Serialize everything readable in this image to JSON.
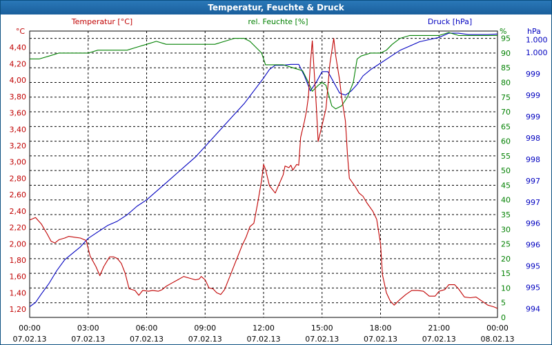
{
  "window": {
    "title": "Temperatur, Feuchte & Druck"
  },
  "colors": {
    "temperature": "#c00000",
    "humidity": "#008000",
    "pressure": "#0000c0",
    "title_bar": "#1f6aa8",
    "grid": "#000000"
  },
  "chart_data": {
    "type": "line",
    "title": "Temperatur, Feuchte & Druck",
    "grid": true,
    "x_ticks": [
      {
        "time": "00:00",
        "date": "07.02.13"
      },
      {
        "time": "03:00",
        "date": "07.02.13"
      },
      {
        "time": "06:00",
        "date": "07.02.13"
      },
      {
        "time": "09:00",
        "date": "07.02.13"
      },
      {
        "time": "12:00",
        "date": "07.02.13"
      },
      {
        "time": "15:00",
        "date": "07.02.13"
      },
      {
        "time": "18:00",
        "date": "07.02.13"
      },
      {
        "time": "21:00",
        "date": "07.02.13"
      },
      {
        "time": "00:00",
        "date": "08.02.13"
      }
    ],
    "xlim_hours": [
      0,
      24
    ],
    "axes": {
      "temperature": {
        "label": "Temperatur [°C]",
        "unit": "°C",
        "ylim": [
          1.1,
          4.6
        ],
        "ticks": [
          "1,20",
          "1,40",
          "1,60",
          "1,80",
          "2,00",
          "2,20",
          "2,40",
          "2,60",
          "2,80",
          "3,00",
          "3,20",
          "3,40",
          "3,60",
          "3,80",
          "4,00",
          "4,20",
          "4,40"
        ],
        "tick_values": [
          1.2,
          1.4,
          1.6,
          1.8,
          2.0,
          2.2,
          2.4,
          2.6,
          2.8,
          3.0,
          3.2,
          3.4,
          3.6,
          3.8,
          4.0,
          4.2,
          4.4
        ]
      },
      "humidity": {
        "label": "rel. Feuchte [%]",
        "unit": "%",
        "ylim": [
          0,
          97.5
        ],
        "ticks": [
          "0",
          "5",
          "10",
          "15",
          "20",
          "25",
          "30",
          "35",
          "40",
          "45",
          "50",
          "55",
          "60",
          "65",
          "70",
          "75",
          "80",
          "85",
          "90",
          "95"
        ],
        "tick_values": [
          0,
          5,
          10,
          15,
          20,
          25,
          30,
          35,
          40,
          45,
          50,
          55,
          60,
          65,
          70,
          75,
          80,
          85,
          90,
          95
        ]
      },
      "pressure": {
        "label": "Druck [hPa]",
        "unit": "hPa",
        "ylim": [
          993.8,
          1000.5
        ],
        "ticks": [
          "994",
          "995",
          "995",
          "996",
          "996",
          "997",
          "997",
          "998",
          "998",
          "999",
          "999",
          "999",
          "1.000",
          "1.000"
        ],
        "tick_values": [
          994,
          994.5,
          995,
          995.5,
          996,
          996.5,
          997,
          997.5,
          998,
          998.5,
          999,
          999.5,
          1000,
          1000.3
        ]
      }
    },
    "series": [
      {
        "name": "Temperatur [°C]",
        "axis": "temperature",
        "points": [
          [
            0,
            2.29
          ],
          [
            0.3,
            2.32
          ],
          [
            0.6,
            2.24
          ],
          [
            0.9,
            2.12
          ],
          [
            1.1,
            2.03
          ],
          [
            1.3,
            2.01
          ],
          [
            1.5,
            2.05
          ],
          [
            1.8,
            2.07
          ],
          [
            2.0,
            2.09
          ],
          [
            2.3,
            2.08
          ],
          [
            2.6,
            2.07
          ],
          [
            2.9,
            2.04
          ],
          [
            3.1,
            1.85
          ],
          [
            3.4,
            1.72
          ],
          [
            3.6,
            1.61
          ],
          [
            3.8,
            1.72
          ],
          [
            4.1,
            1.84
          ],
          [
            4.3,
            1.84
          ],
          [
            4.5,
            1.82
          ],
          [
            4.7,
            1.76
          ],
          [
            4.9,
            1.64
          ],
          [
            5.1,
            1.45
          ],
          [
            5.4,
            1.43
          ],
          [
            5.6,
            1.37
          ],
          [
            5.8,
            1.43
          ],
          [
            6.1,
            1.42
          ],
          [
            6.3,
            1.43
          ],
          [
            6.6,
            1.42
          ],
          [
            6.8,
            1.44
          ],
          [
            7.0,
            1.48
          ],
          [
            7.3,
            1.52
          ],
          [
            7.6,
            1.56
          ],
          [
            7.9,
            1.6
          ],
          [
            8.2,
            1.58
          ],
          [
            8.5,
            1.56
          ],
          [
            8.7,
            1.57
          ],
          [
            8.8,
            1.6
          ],
          [
            9.0,
            1.56
          ],
          [
            9.2,
            1.46
          ],
          [
            9.4,
            1.45
          ],
          [
            9.6,
            1.4
          ],
          [
            9.8,
            1.38
          ],
          [
            10.0,
            1.44
          ],
          [
            10.3,
            1.62
          ],
          [
            10.6,
            1.8
          ],
          [
            10.9,
            1.98
          ],
          [
            11.1,
            2.08
          ],
          [
            11.3,
            2.21
          ],
          [
            11.5,
            2.25
          ],
          [
            11.7,
            2.5
          ],
          [
            11.9,
            2.78
          ],
          [
            12.0,
            2.97
          ],
          [
            12.1,
            2.91
          ],
          [
            12.3,
            2.71
          ],
          [
            12.5,
            2.65
          ],
          [
            12.6,
            2.62
          ],
          [
            12.8,
            2.73
          ],
          [
            13.0,
            2.84
          ],
          [
            13.1,
            2.95
          ],
          [
            13.3,
            2.93
          ],
          [
            13.4,
            2.96
          ],
          [
            13.5,
            2.9
          ],
          [
            13.7,
            2.97
          ],
          [
            13.8,
            2.96
          ],
          [
            13.9,
            3.3
          ],
          [
            14.1,
            3.5
          ],
          [
            14.2,
            3.62
          ],
          [
            14.3,
            3.8
          ],
          [
            14.4,
            4.2
          ],
          [
            14.5,
            4.48
          ],
          [
            14.7,
            3.7
          ],
          [
            14.8,
            3.25
          ],
          [
            15.0,
            3.45
          ],
          [
            15.2,
            3.65
          ],
          [
            15.4,
            4.2
          ],
          [
            15.6,
            4.51
          ],
          [
            15.7,
            4.3
          ],
          [
            15.9,
            4.0
          ],
          [
            16.0,
            3.8
          ],
          [
            16.2,
            3.5
          ],
          [
            16.3,
            3.1
          ],
          [
            16.4,
            2.8
          ],
          [
            16.7,
            2.7
          ],
          [
            16.9,
            2.62
          ],
          [
            17.1,
            2.58
          ],
          [
            17.3,
            2.5
          ],
          [
            17.6,
            2.4
          ],
          [
            17.8,
            2.3
          ],
          [
            18.0,
            2.0
          ],
          [
            18.1,
            1.62
          ],
          [
            18.3,
            1.4
          ],
          [
            18.5,
            1.3
          ],
          [
            18.7,
            1.25
          ],
          [
            19.0,
            1.32
          ],
          [
            19.3,
            1.38
          ],
          [
            19.6,
            1.43
          ],
          [
            19.9,
            1.43
          ],
          [
            20.2,
            1.42
          ],
          [
            20.5,
            1.36
          ],
          [
            20.8,
            1.36
          ],
          [
            21.0,
            1.42
          ],
          [
            21.3,
            1.44
          ],
          [
            21.5,
            1.5
          ],
          [
            21.8,
            1.5
          ],
          [
            22.0,
            1.45
          ],
          [
            22.3,
            1.35
          ],
          [
            22.6,
            1.34
          ],
          [
            22.9,
            1.35
          ],
          [
            23.2,
            1.3
          ],
          [
            23.5,
            1.25
          ],
          [
            23.8,
            1.23
          ],
          [
            24.0,
            1.21
          ]
        ]
      },
      {
        "name": "rel. Feuchte [%]",
        "axis": "humidity",
        "points": [
          [
            0,
            88
          ],
          [
            0.5,
            88
          ],
          [
            1.0,
            89
          ],
          [
            1.5,
            90
          ],
          [
            2.0,
            90
          ],
          [
            2.5,
            90
          ],
          [
            3.0,
            90
          ],
          [
            3.5,
            91
          ],
          [
            4.0,
            91
          ],
          [
            4.5,
            91
          ],
          [
            5.0,
            91
          ],
          [
            5.5,
            92
          ],
          [
            6.0,
            93
          ],
          [
            6.5,
            94
          ],
          [
            7.0,
            93
          ],
          [
            7.5,
            93
          ],
          [
            8.0,
            93
          ],
          [
            8.5,
            93
          ],
          [
            9.0,
            93
          ],
          [
            9.5,
            93
          ],
          [
            10.0,
            94
          ],
          [
            10.5,
            95
          ],
          [
            11.0,
            95
          ],
          [
            11.3,
            94
          ],
          [
            11.6,
            92
          ],
          [
            11.9,
            90
          ],
          [
            12.1,
            86
          ],
          [
            12.5,
            86
          ],
          [
            13.0,
            86
          ],
          [
            13.5,
            85
          ],
          [
            14.0,
            84
          ],
          [
            14.3,
            80
          ],
          [
            14.5,
            77
          ],
          [
            14.8,
            79
          ],
          [
            15.0,
            80
          ],
          [
            15.2,
            79
          ],
          [
            15.5,
            72
          ],
          [
            15.7,
            71
          ],
          [
            16.0,
            72
          ],
          [
            16.3,
            75
          ],
          [
            16.6,
            80
          ],
          [
            16.8,
            88
          ],
          [
            17.0,
            89
          ],
          [
            17.5,
            90
          ],
          [
            18.0,
            90
          ],
          [
            18.3,
            91
          ],
          [
            18.6,
            93
          ],
          [
            19.0,
            95
          ],
          [
            19.5,
            96
          ],
          [
            20.0,
            96
          ],
          [
            20.5,
            96
          ],
          [
            21.0,
            96
          ],
          [
            21.5,
            97
          ],
          [
            22.0,
            96
          ],
          [
            22.5,
            96
          ],
          [
            23.0,
            96
          ],
          [
            23.5,
            96
          ],
          [
            24.0,
            96
          ]
        ]
      },
      {
        "name": "Druck [hPa]",
        "axis": "pressure",
        "points": [
          [
            0,
            994.05
          ],
          [
            0.3,
            994.15
          ],
          [
            0.6,
            994.35
          ],
          [
            1.0,
            994.6
          ],
          [
            1.4,
            994.9
          ],
          [
            1.8,
            995.15
          ],
          [
            2.2,
            995.3
          ],
          [
            2.6,
            995.45
          ],
          [
            3.0,
            995.65
          ],
          [
            3.5,
            995.8
          ],
          [
            4.0,
            995.95
          ],
          [
            4.5,
            996.05
          ],
          [
            5.0,
            996.2
          ],
          [
            5.5,
            996.4
          ],
          [
            6.0,
            996.55
          ],
          [
            6.5,
            996.75
          ],
          [
            7.0,
            996.95
          ],
          [
            7.5,
            997.15
          ],
          [
            8.0,
            997.35
          ],
          [
            8.5,
            997.55
          ],
          [
            9.0,
            997.8
          ],
          [
            9.5,
            998.05
          ],
          [
            10.0,
            998.3
          ],
          [
            10.5,
            998.55
          ],
          [
            11.0,
            998.8
          ],
          [
            11.5,
            999.1
          ],
          [
            12.0,
            999.4
          ],
          [
            12.3,
            999.6
          ],
          [
            12.6,
            999.7
          ],
          [
            13.0,
            999.7
          ],
          [
            13.4,
            999.72
          ],
          [
            13.8,
            999.72
          ],
          [
            14.1,
            999.45
          ],
          [
            14.4,
            999.1
          ],
          [
            14.7,
            999.3
          ],
          [
            15.0,
            999.55
          ],
          [
            15.3,
            999.55
          ],
          [
            15.6,
            999.3
          ],
          [
            15.9,
            999.05
          ],
          [
            16.2,
            999.0
          ],
          [
            16.5,
            999.1
          ],
          [
            16.8,
            999.25
          ],
          [
            17.1,
            999.45
          ],
          [
            17.5,
            999.6
          ],
          [
            18.0,
            999.75
          ],
          [
            18.5,
            999.9
          ],
          [
            19.0,
            1000.05
          ],
          [
            19.5,
            1000.15
          ],
          [
            20.0,
            1000.25
          ],
          [
            20.5,
            1000.3
          ],
          [
            21.0,
            1000.35
          ],
          [
            21.5,
            1000.45
          ],
          [
            22.0,
            1000.45
          ],
          [
            22.5,
            1000.42
          ],
          [
            23.0,
            1000.42
          ],
          [
            23.5,
            1000.42
          ],
          [
            24.0,
            1000.43
          ]
        ]
      }
    ]
  }
}
